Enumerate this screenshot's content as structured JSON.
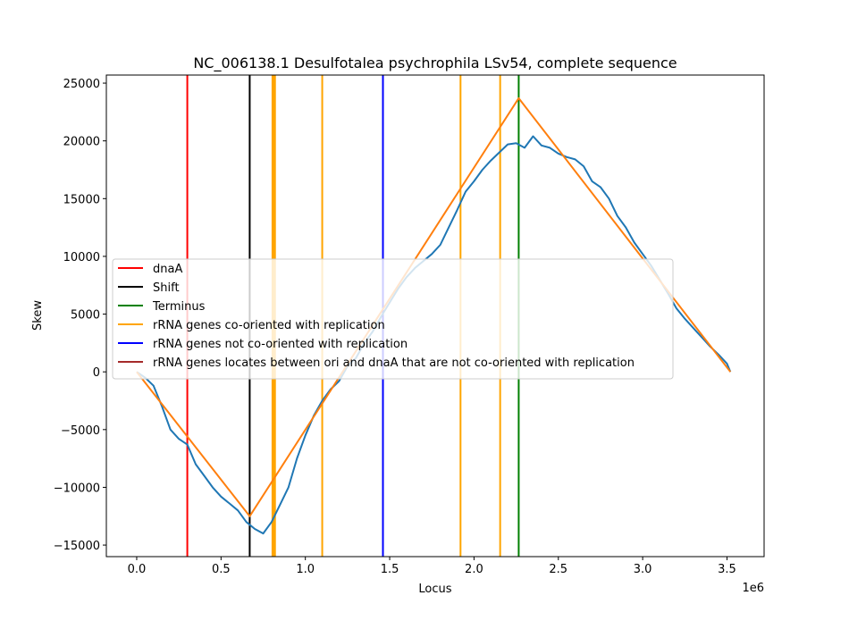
{
  "chart_data": {
    "type": "line",
    "title": "NC_006138.1 Desulfotalea psychrophila LSv54, complete sequence",
    "xlabel": "Locus",
    "ylabel": "Skew",
    "x_offset_label": "1e6",
    "xlim": [
      -0.18,
      3.72
    ],
    "ylim": [
      -16000,
      25700
    ],
    "x_ticks": [
      0.0,
      0.5,
      1.0,
      1.5,
      2.0,
      2.5,
      3.0,
      3.5
    ],
    "x_tick_labels": [
      "0.0",
      "0.5",
      "1.0",
      "1.5",
      "2.0",
      "2.5",
      "3.0",
      "3.5"
    ],
    "y_ticks": [
      -15000,
      -10000,
      -5000,
      0,
      5000,
      10000,
      15000,
      20000,
      25000
    ],
    "y_tick_labels": [
      "−15000",
      "−10000",
      "−5000",
      "0",
      "5000",
      "10000",
      "15000",
      "20000",
      "25000"
    ],
    "grid": false,
    "legend_position": "center-left",
    "series": [
      {
        "name": "",
        "color": "#1f77b4",
        "x": [
          0.0,
          0.05,
          0.1,
          0.15,
          0.2,
          0.25,
          0.3,
          0.35,
          0.4,
          0.45,
          0.5,
          0.55,
          0.6,
          0.65,
          0.7,
          0.75,
          0.8,
          0.85,
          0.9,
          0.95,
          1.0,
          1.05,
          1.1,
          1.15,
          1.2,
          1.25,
          1.3,
          1.35,
          1.4,
          1.45,
          1.5,
          1.55,
          1.6,
          1.65,
          1.7,
          1.75,
          1.8,
          1.85,
          1.9,
          1.95,
          2.0,
          2.05,
          2.1,
          2.15,
          2.2,
          2.25,
          2.3,
          2.35,
          2.4,
          2.45,
          2.5,
          2.55,
          2.6,
          2.65,
          2.7,
          2.75,
          2.8,
          2.85,
          2.9,
          2.95,
          3.0,
          3.05,
          3.1,
          3.15,
          3.2,
          3.25,
          3.3,
          3.35,
          3.4,
          3.45,
          3.5,
          3.52
        ],
        "y": [
          0,
          -500,
          -1200,
          -3000,
          -5000,
          -5800,
          -6300,
          -8000,
          -9000,
          -10000,
          -10800,
          -11400,
          -12000,
          -13000,
          -13600,
          -14000,
          -13000,
          -11500,
          -10000,
          -7500,
          -5500,
          -3800,
          -2500,
          -1500,
          -800,
          500,
          1200,
          2500,
          3500,
          4800,
          6000,
          7200,
          8200,
          9000,
          9600,
          10200,
          11000,
          12500,
          14000,
          15600,
          16500,
          17500,
          18300,
          19000,
          19700,
          19800,
          19400,
          20400,
          19600,
          19400,
          18900,
          18600,
          18400,
          17800,
          16500,
          16000,
          15000,
          13500,
          12500,
          11200,
          10200,
          9200,
          8000,
          6800,
          5500,
          4600,
          3800,
          3000,
          2200,
          1500,
          700,
          0
        ]
      },
      {
        "name": "",
        "color": "#ff7f0e",
        "x": [
          0.0,
          0.67,
          2.265,
          3.52
        ],
        "y": [
          0,
          -12500,
          23700,
          0
        ]
      }
    ],
    "vlines": [
      {
        "group": "dnaA",
        "color": "#ff0000",
        "x": [
          0.3
        ]
      },
      {
        "group": "Shift",
        "color": "#000000",
        "x": [
          0.67
        ]
      },
      {
        "group": "Terminus",
        "color": "#008000",
        "x": [
          2.265
        ]
      },
      {
        "group": "rRNA genes co-oriented with replication",
        "color": "#ffa500",
        "x": [
          0.805,
          0.81,
          0.815,
          0.82,
          1.1,
          1.92,
          2.155
        ]
      },
      {
        "group": "rRNA genes not co-oriented with replication",
        "color": "#0000ff",
        "x": [
          1.46
        ]
      }
    ],
    "legend": [
      {
        "label": "dnaA",
        "color": "#ff0000"
      },
      {
        "label": "Shift",
        "color": "#000000"
      },
      {
        "label": "Terminus",
        "color": "#008000"
      },
      {
        "label": "rRNA genes co-oriented with replication",
        "color": "#ffa500"
      },
      {
        "label": "rRNA genes not co-oriented with replication",
        "color": "#0000ff"
      },
      {
        "label": "rRNA genes locates between ori and dnaA that are not co-oriented with replication",
        "color": "#a52a2a"
      }
    ]
  }
}
